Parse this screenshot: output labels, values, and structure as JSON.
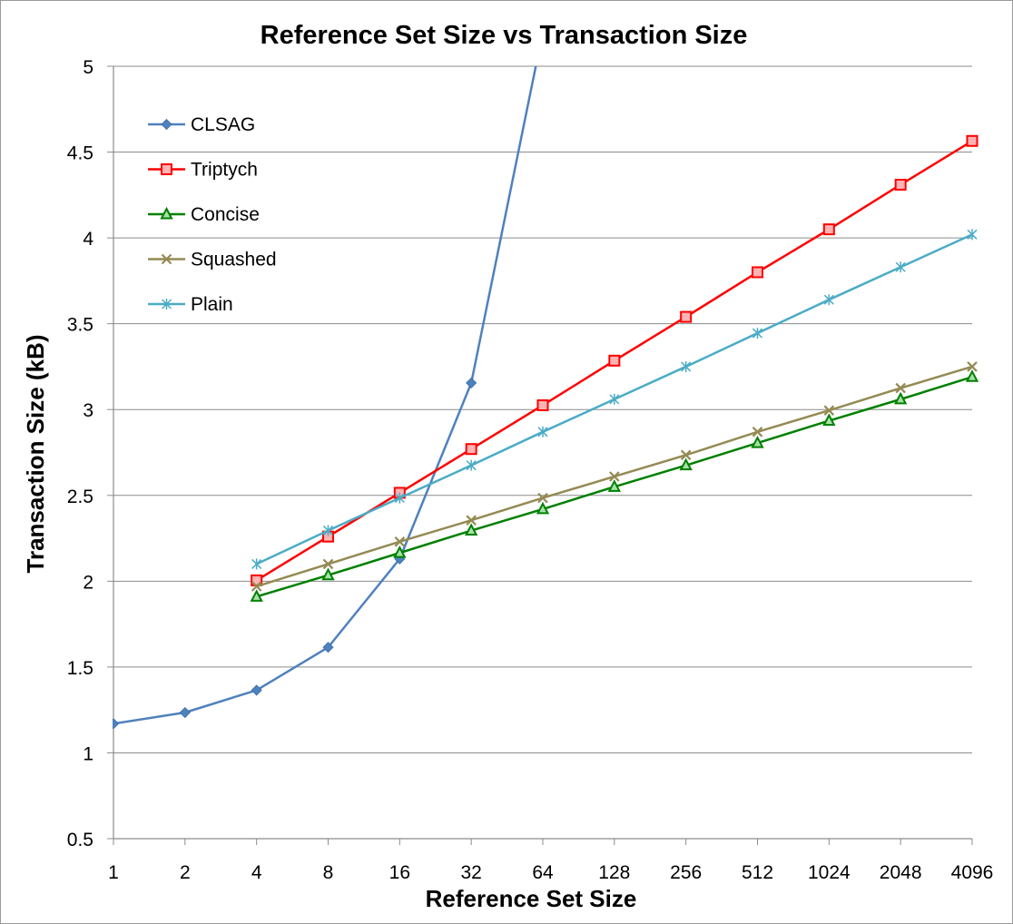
{
  "chart_data": {
    "type": "line",
    "title": "Reference Set Size vs Transaction Size",
    "xlabel": "Reference Set Size",
    "ylabel": "Transaction Size (kB)",
    "categories": [
      "1",
      "2",
      "4",
      "8",
      "16",
      "32",
      "64",
      "128",
      "256",
      "512",
      "1024",
      "2048",
      "4096"
    ],
    "ylim": [
      0.5,
      5
    ],
    "yticks": [
      "0.5",
      "1",
      "1.5",
      "2",
      "2.5",
      "3",
      "3.5",
      "4",
      "4.5",
      "5"
    ],
    "grid": "horizontal",
    "legend_position": "top-left",
    "series": [
      {
        "name": "CLSAG",
        "color": "#4f81bd",
        "marker": "diamond",
        "values": [
          1.17,
          1.235,
          1.365,
          1.615,
          2.13,
          3.155,
          5.2,
          null,
          null,
          null,
          null,
          null,
          null
        ]
      },
      {
        "name": "Triptych",
        "color": "#ff0000",
        "marker": "square",
        "values": [
          null,
          null,
          2.005,
          2.26,
          2.515,
          2.77,
          3.025,
          3.285,
          3.54,
          3.8,
          4.05,
          4.31,
          4.565
        ]
      },
      {
        "name": "Concise",
        "color": "#008000",
        "marker": "triangle",
        "values": [
          null,
          null,
          1.91,
          2.035,
          2.165,
          2.295,
          2.42,
          2.55,
          2.675,
          2.805,
          2.935,
          3.06,
          3.19
        ]
      },
      {
        "name": "Squashed",
        "color": "#948a54",
        "marker": "x",
        "values": [
          null,
          null,
          1.97,
          2.1,
          2.23,
          2.355,
          2.485,
          2.61,
          2.735,
          2.87,
          2.995,
          3.125,
          3.25
        ]
      },
      {
        "name": "Plain",
        "color": "#4bacc6",
        "marker": "star",
        "values": [
          null,
          null,
          2.1,
          2.295,
          2.485,
          2.675,
          2.87,
          3.06,
          3.25,
          3.445,
          3.64,
          3.83,
          4.02
        ]
      }
    ]
  }
}
